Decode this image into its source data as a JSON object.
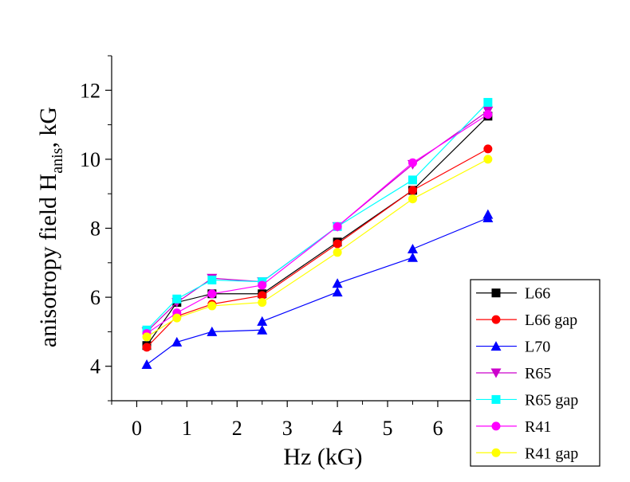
{
  "chart_data": {
    "type": "line",
    "xlabel": "Hz (kG)",
    "ylabel_main": "anisotropy field H",
    "ylabel_sub": "anis",
    "ylabel_tail": ", kG",
    "xlim": [
      -0.5,
      7.05
    ],
    "ylim": [
      3,
      13
    ],
    "xticks": [
      0,
      1,
      2,
      3,
      4,
      5,
      6
    ],
    "yticks": [
      4,
      6,
      8,
      10,
      12
    ],
    "grid": false,
    "legend_position": "bottom-right",
    "series": [
      {
        "name": "L66",
        "color": "#000000",
        "marker": "square",
        "x": [
          0.2,
          0.8,
          1.5,
          2.5,
          4.0,
          5.5,
          7.0
        ],
        "y": [
          4.6,
          5.85,
          6.1,
          6.1,
          7.6,
          9.1,
          11.25
        ]
      },
      {
        "name": "L66 gap",
        "color": "#ff0000",
        "marker": "circle",
        "x": [
          0.2,
          0.8,
          1.5,
          2.5,
          4.0,
          5.5,
          7.0
        ],
        "y": [
          4.55,
          5.45,
          5.8,
          6.05,
          7.55,
          9.1,
          10.3
        ]
      },
      {
        "name": "L70",
        "color": "#0000ff",
        "marker": "triangle-up",
        "x": [
          0.2,
          0.8,
          1.5,
          2.5,
          2.5,
          4.0,
          4.0,
          5.5,
          5.5,
          7.0,
          7.0
        ],
        "y": [
          4.05,
          4.7,
          5.0,
          5.05,
          5.3,
          6.15,
          6.4,
          7.15,
          7.4,
          8.3,
          8.4
        ]
      },
      {
        "name": "R65",
        "color": "#cc00cc",
        "marker": "triangle-down",
        "x": [
          0.2,
          0.8,
          1.5,
          2.5,
          4.0,
          5.5,
          7.0
        ],
        "y": [
          5.0,
          5.85,
          6.55,
          6.45,
          8.05,
          9.85,
          11.4
        ]
      },
      {
        "name": "R65 gap",
        "color": "#00ffff",
        "marker": "square",
        "x": [
          0.2,
          0.8,
          1.5,
          2.5,
          4.0,
          5.5,
          7.0
        ],
        "y": [
          5.05,
          5.95,
          6.5,
          6.45,
          8.05,
          9.4,
          11.65
        ]
      },
      {
        "name": "R41",
        "color": "#ff00ff",
        "marker": "circle",
        "x": [
          0.2,
          0.8,
          1.5,
          2.5,
          4.0,
          5.5,
          7.0
        ],
        "y": [
          4.95,
          5.55,
          6.1,
          6.35,
          8.05,
          9.9,
          11.3
        ]
      },
      {
        "name": "R41 gap",
        "color": "#ffff00",
        "marker": "circle",
        "x": [
          0.2,
          0.8,
          1.5,
          2.5,
          4.0,
          5.5,
          7.0
        ],
        "y": [
          4.85,
          5.4,
          5.75,
          5.85,
          7.3,
          8.85,
          10.0
        ]
      }
    ]
  }
}
